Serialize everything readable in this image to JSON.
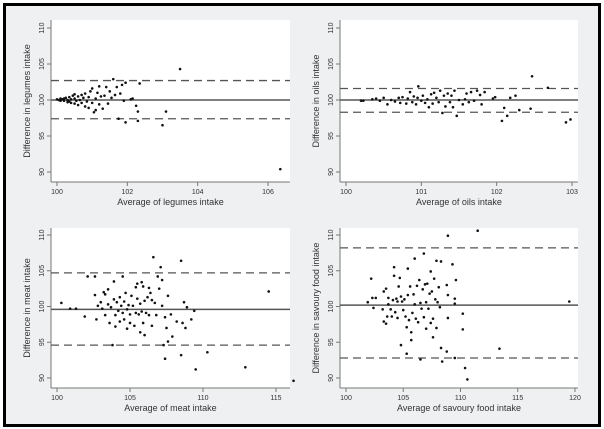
{
  "chart_data": [
    {
      "type": "scatter",
      "title": "",
      "xlabel": "Average of legumes intake",
      "ylabel": "Difference in legumes intake",
      "xlim": [
        99.8,
        106.6
      ],
      "ylim": [
        89,
        111
      ],
      "xticks": [
        100,
        102,
        104,
        106
      ],
      "yticks": [
        90,
        95,
        100,
        105,
        110
      ],
      "grid": false,
      "hlines": {
        "mean": 100.0,
        "upper_loa": 102.7,
        "lower_loa": 97.4
      },
      "points": [
        [
          100,
          100.1
        ],
        [
          100.05,
          100.0
        ],
        [
          100.1,
          100.2
        ],
        [
          100.1,
          99.9
        ],
        [
          100.15,
          100.1
        ],
        [
          100.2,
          100.2
        ],
        [
          100.2,
          99.9
        ],
        [
          100.25,
          100.3
        ],
        [
          100.3,
          100.0
        ],
        [
          100.3,
          99.7
        ],
        [
          100.35,
          100.4
        ],
        [
          100.35,
          99.8
        ],
        [
          100.4,
          100.1
        ],
        [
          100.4,
          99.6
        ],
        [
          100.45,
          100.6
        ],
        [
          100.5,
          100.2
        ],
        [
          100.5,
          99.5
        ],
        [
          100.5,
          100.8
        ],
        [
          100.55,
          99.9
        ],
        [
          100.6,
          100.5
        ],
        [
          100.6,
          99.3
        ],
        [
          100.65,
          100.0
        ],
        [
          100.7,
          100.7
        ],
        [
          100.7,
          99.6
        ],
        [
          100.75,
          100.3
        ],
        [
          100.8,
          99.1
        ],
        [
          100.8,
          100.9
        ],
        [
          100.85,
          99.8
        ],
        [
          100.9,
          100.4
        ],
        [
          100.9,
          98.9
        ],
        [
          100.95,
          101.2
        ],
        [
          101.0,
          99.6
        ],
        [
          101.0,
          101.6
        ],
        [
          101.05,
          98.3
        ],
        [
          101.1,
          100.2
        ],
        [
          101.1,
          98.6
        ],
        [
          101.15,
          101.0
        ],
        [
          101.2,
          99.4
        ],
        [
          101.2,
          101.9
        ],
        [
          101.25,
          100.5
        ],
        [
          101.3,
          98.8
        ],
        [
          101.35,
          100.6
        ],
        [
          101.4,
          101.8
        ],
        [
          101.45,
          99.5
        ],
        [
          101.5,
          101.2
        ],
        [
          101.55,
          100.3
        ],
        [
          101.6,
          102.9
        ],
        [
          101.65,
          100.7
        ],
        [
          101.7,
          101.8
        ],
        [
          101.75,
          97.4
        ],
        [
          101.8,
          100.9
        ],
        [
          101.85,
          102.1
        ],
        [
          101.9,
          99.9
        ],
        [
          101.95,
          102.4
        ],
        [
          101.95,
          96.9
        ],
        [
          102.1,
          100.1
        ],
        [
          102.15,
          100.2
        ],
        [
          102.25,
          99.2
        ],
        [
          102.3,
          98.4
        ],
        [
          102.3,
          97.1
        ],
        [
          102.35,
          102.3
        ],
        [
          103.0,
          96.5
        ],
        [
          103.1,
          98.4
        ],
        [
          103.5,
          104.3
        ],
        [
          106.35,
          90.4
        ]
      ]
    },
    {
      "type": "scatter",
      "title": "",
      "xlabel": "Average of oils intake",
      "ylabel": "Difference in oils intake",
      "xlim": [
        99.95,
        103.05
      ],
      "ylim": [
        89,
        111
      ],
      "xticks": [
        100,
        101,
        102,
        103
      ],
      "yticks": [
        90,
        95,
        100,
        105,
        110
      ],
      "grid": false,
      "hlines": {
        "mean": 100.0,
        "upper_loa": 101.6,
        "lower_loa": 98.3
      },
      "points": [
        [
          100.2,
          99.9
        ],
        [
          100.23,
          99.9
        ],
        [
          100.35,
          100.1
        ],
        [
          100.4,
          100.2
        ],
        [
          100.45,
          99.9
        ],
        [
          100.5,
          100.3
        ],
        [
          100.55,
          99.4
        ],
        [
          100.6,
          100.0
        ],
        [
          100.65,
          99.8
        ],
        [
          100.7,
          100.3
        ],
        [
          100.72,
          99.6
        ],
        [
          100.75,
          100.4
        ],
        [
          100.8,
          99.5
        ],
        [
          100.82,
          100.2
        ],
        [
          100.85,
          101.1
        ],
        [
          100.88,
          99.7
        ],
        [
          100.9,
          100.5
        ],
        [
          100.93,
          99.4
        ],
        [
          100.95,
          100.3
        ],
        [
          100.96,
          101.9
        ],
        [
          101.0,
          99.9
        ],
        [
          101.02,
          100.6
        ],
        [
          101.05,
          99.6
        ],
        [
          101.08,
          100.1
        ],
        [
          101.1,
          99.0
        ],
        [
          101.13,
          100.8
        ],
        [
          101.15,
          99.5
        ],
        [
          101.17,
          101.0
        ],
        [
          101.2,
          100.3
        ],
        [
          101.23,
          99.7
        ],
        [
          101.25,
          101.3
        ],
        [
          101.28,
          98.2
        ],
        [
          101.3,
          100.6
        ],
        [
          101.32,
          99.1
        ],
        [
          101.35,
          100.9
        ],
        [
          101.38,
          99.7
        ],
        [
          101.4,
          100.6
        ],
        [
          101.42,
          99.0
        ],
        [
          101.44,
          101.3
        ],
        [
          101.47,
          97.8
        ],
        [
          101.5,
          100.0
        ],
        [
          101.55,
          99.4
        ],
        [
          101.58,
          100.1
        ],
        [
          101.6,
          100.9
        ],
        [
          101.63,
          99.7
        ],
        [
          101.66,
          101.1
        ],
        [
          101.7,
          99.9
        ],
        [
          101.74,
          101.3
        ],
        [
          101.78,
          100.7
        ],
        [
          101.8,
          99.4
        ],
        [
          101.84,
          101.1
        ],
        [
          101.95,
          100.2
        ],
        [
          101.98,
          100.4
        ],
        [
          102.07,
          97.1
        ],
        [
          102.1,
          98.9
        ],
        [
          102.14,
          97.8
        ],
        [
          102.18,
          100.3
        ],
        [
          102.25,
          100.6
        ],
        [
          102.3,
          98.6
        ],
        [
          102.45,
          98.8
        ],
        [
          102.47,
          103.3
        ],
        [
          102.68,
          101.7
        ],
        [
          102.92,
          96.9
        ],
        [
          102.98,
          97.3
        ]
      ]
    },
    {
      "type": "scatter",
      "title": "",
      "xlabel": "Average of meat intake",
      "ylabel": "Difference in meat intake",
      "xlim": [
        99.6,
        116.6
      ],
      "ylim": [
        89,
        111
      ],
      "xticks": [
        100,
        105,
        110,
        115
      ],
      "yticks": [
        90,
        95,
        100,
        105,
        110
      ],
      "grid": false,
      "hlines": {
        "mean": 99.6,
        "upper_loa": 104.7,
        "lower_loa": 94.6
      },
      "points": [
        [
          100.3,
          100.5
        ],
        [
          100.9,
          99.7
        ],
        [
          101.3,
          99.7
        ],
        [
          101.9,
          98.6
        ],
        [
          102.1,
          104.2
        ],
        [
          102.6,
          104.2
        ],
        [
          102.6,
          101.6
        ],
        [
          102.7,
          98.2
        ],
        [
          102.8,
          100.1
        ],
        [
          103.0,
          100.6
        ],
        [
          103.1,
          99.7
        ],
        [
          103.2,
          102.0
        ],
        [
          103.3,
          101.7
        ],
        [
          103.3,
          98.8
        ],
        [
          103.5,
          102.4
        ],
        [
          103.5,
          100.3
        ],
        [
          103.6,
          97.7
        ],
        [
          103.7,
          99.9
        ],
        [
          103.8,
          94.6
        ],
        [
          103.9,
          103.5
        ],
        [
          103.9,
          101.0
        ],
        [
          104.0,
          98.8
        ],
        [
          104.0,
          97.2
        ],
        [
          104.1,
          100.6
        ],
        [
          104.2,
          99.4
        ],
        [
          104.3,
          101.3
        ],
        [
          104.3,
          97.9
        ],
        [
          104.4,
          100.1
        ],
        [
          104.5,
          99.1
        ],
        [
          104.5,
          104.2
        ],
        [
          104.6,
          100.7
        ],
        [
          104.6,
          98.2
        ],
        [
          104.7,
          101.9
        ],
        [
          104.8,
          99.6
        ],
        [
          104.8,
          96.9
        ],
        [
          104.9,
          100.2
        ],
        [
          105.0,
          98.9
        ],
        [
          105.0,
          97.7
        ],
        [
          105.1,
          101.5
        ],
        [
          105.2,
          100.1
        ],
        [
          105.3,
          97.3
        ],
        [
          105.4,
          102.7
        ],
        [
          105.4,
          99.1
        ],
        [
          105.5,
          103.2
        ],
        [
          105.5,
          101.1
        ],
        [
          105.6,
          98.9
        ],
        [
          105.7,
          96.4
        ],
        [
          105.7,
          100.4
        ],
        [
          105.8,
          103.4
        ],
        [
          105.8,
          99.3
        ],
        [
          105.9,
          102.8
        ],
        [
          105.9,
          97.7
        ],
        [
          106.0,
          100.8
        ],
        [
          106.0,
          96.0
        ],
        [
          106.1,
          99.1
        ],
        [
          106.2,
          101.3
        ],
        [
          106.3,
          98.8
        ],
        [
          106.3,
          102.6
        ],
        [
          106.4,
          101.9
        ],
        [
          106.5,
          97.3
        ],
        [
          106.5,
          100.9
        ],
        [
          106.6,
          106.9
        ],
        [
          106.7,
          100.5
        ],
        [
          106.8,
          98.8
        ],
        [
          106.9,
          104.2
        ],
        [
          107.0,
          102.5
        ],
        [
          107.1,
          105.5
        ],
        [
          107.2,
          100.1
        ],
        [
          107.2,
          103.7
        ],
        [
          107.3,
          94.6
        ],
        [
          107.4,
          98.5
        ],
        [
          107.4,
          92.7
        ],
        [
          107.5,
          97.0
        ],
        [
          107.6,
          95.1
        ],
        [
          107.6,
          101.5
        ],
        [
          107.8,
          98.9
        ],
        [
          107.9,
          95.8
        ],
        [
          108.2,
          97.9
        ],
        [
          108.5,
          93.2
        ],
        [
          108.5,
          106.4
        ],
        [
          108.6,
          97.7
        ],
        [
          108.7,
          100.6
        ],
        [
          108.8,
          97.0
        ],
        [
          108.9,
          99.9
        ],
        [
          109.2,
          98.2
        ],
        [
          109.4,
          99.4
        ],
        [
          109.5,
          91.2
        ],
        [
          110.3,
          93.6
        ],
        [
          112.9,
          91.5
        ],
        [
          114.5,
          102.1
        ],
        [
          116.2,
          89.6
        ]
      ]
    },
    {
      "type": "scatter",
      "title": "",
      "xlabel": "Average of savoury food intake",
      "ylabel": "Difference in savoury food intake",
      "xlim": [
        99.6,
        120.6
      ],
      "ylim": [
        89,
        111
      ],
      "xticks": [
        100,
        105,
        110,
        115,
        120
      ],
      "yticks": [
        90,
        95,
        100,
        105,
        110
      ],
      "grid": false,
      "hlines": {
        "mean": 100.2,
        "upper_loa": 108.2,
        "lower_loa": 92.8
      },
      "points": [
        [
          101.9,
          100.6
        ],
        [
          102.2,
          103.9
        ],
        [
          102.3,
          101.2
        ],
        [
          102.4,
          99.8
        ],
        [
          102.6,
          101.2
        ],
        [
          103.2,
          99.6
        ],
        [
          103.3,
          97.9
        ],
        [
          103.3,
          102.1
        ],
        [
          103.5,
          97.6
        ],
        [
          103.5,
          102.5
        ],
        [
          103.6,
          98.6
        ],
        [
          103.7,
          100.3
        ],
        [
          103.7,
          101.2
        ],
        [
          103.9,
          99.6
        ],
        [
          104.0,
          98.6
        ],
        [
          104.1,
          100.9
        ],
        [
          104.2,
          105.5
        ],
        [
          104.2,
          104.3
        ],
        [
          104.3,
          99.2
        ],
        [
          104.4,
          101.1
        ],
        [
          104.5,
          98.4
        ],
        [
          104.5,
          100.7
        ],
        [
          104.6,
          102.8
        ],
        [
          104.7,
          104.0
        ],
        [
          104.8,
          101.4
        ],
        [
          104.8,
          94.6
        ],
        [
          104.9,
          100.7
        ],
        [
          105.0,
          99.5
        ],
        [
          105.1,
          101.0
        ],
        [
          105.2,
          98.6
        ],
        [
          105.3,
          97.1
        ],
        [
          105.3,
          93.4
        ],
        [
          105.4,
          105.3
        ],
        [
          105.4,
          101.6
        ],
        [
          105.5,
          98.1
        ],
        [
          105.6,
          102.8
        ],
        [
          105.7,
          96.4
        ],
        [
          105.7,
          95.3
        ],
        [
          105.8,
          99.1
        ],
        [
          105.9,
          101.7
        ],
        [
          106.0,
          106.7
        ],
        [
          106.0,
          100.3
        ],
        [
          106.1,
          98.3
        ],
        [
          106.2,
          102.9
        ],
        [
          106.3,
          97.8
        ],
        [
          106.4,
          103.7
        ],
        [
          106.5,
          92.6
        ],
        [
          106.5,
          100.5
        ],
        [
          106.6,
          99.7
        ],
        [
          106.7,
          102.4
        ],
        [
          106.8,
          107.4
        ],
        [
          106.8,
          98.5
        ],
        [
          106.9,
          103.1
        ],
        [
          107.0,
          96.9
        ],
        [
          107.0,
          100.6
        ],
        [
          107.1,
          103.2
        ],
        [
          107.2,
          99.7
        ],
        [
          107.3,
          101.8
        ],
        [
          107.4,
          104.9
        ],
        [
          107.4,
          97.7
        ],
        [
          107.5,
          102.1
        ],
        [
          107.6,
          98.3
        ],
        [
          107.6,
          95.7
        ],
        [
          107.7,
          103.9
        ],
        [
          107.8,
          101.0
        ],
        [
          107.9,
          106.4
        ],
        [
          107.9,
          97.0
        ],
        [
          108.0,
          100.6
        ],
        [
          108.1,
          102.7
        ],
        [
          108.2,
          99.9
        ],
        [
          108.3,
          106.3
        ],
        [
          108.3,
          94.2
        ],
        [
          108.4,
          92.3
        ],
        [
          108.8,
          93.7
        ],
        [
          108.8,
          103.0
        ],
        [
          108.9,
          109.9
        ],
        [
          108.9,
          101.6
        ],
        [
          108.9,
          98.4
        ],
        [
          109.3,
          105.9
        ],
        [
          109.5,
          100.4
        ],
        [
          109.5,
          101.1
        ],
        [
          109.6,
          103.7
        ],
        [
          109.5,
          92.8
        ],
        [
          110.2,
          99.0
        ],
        [
          110.2,
          96.8
        ],
        [
          110.4,
          91.4
        ],
        [
          110.6,
          89.8
        ],
        [
          111.5,
          110.6
        ],
        [
          113.4,
          94.1
        ],
        [
          119.5,
          100.7
        ]
      ]
    }
  ]
}
